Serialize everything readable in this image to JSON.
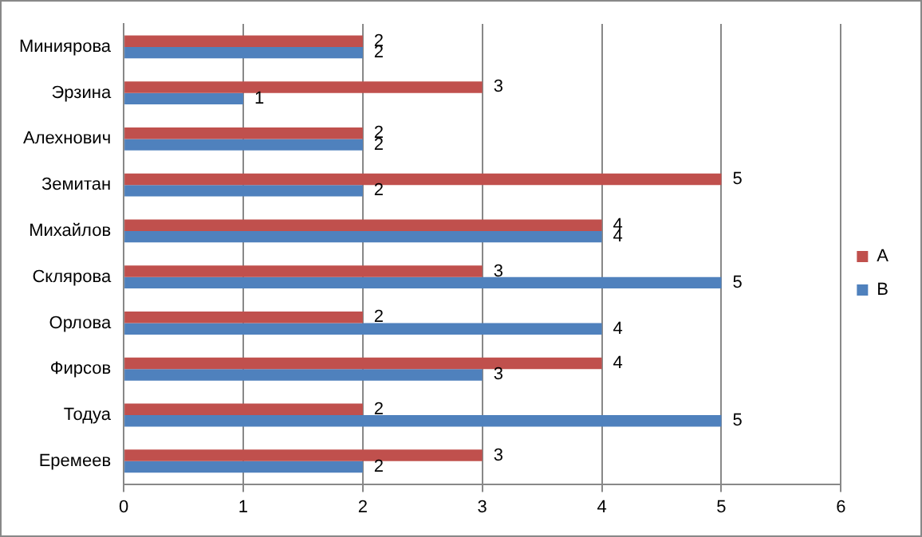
{
  "chart_data": {
    "type": "bar",
    "orientation": "horizontal",
    "categories": [
      "Миниярова",
      "Эрзина",
      "Алехнович",
      "Земитан",
      "Михайлов",
      "Склярова",
      "Орлова",
      "Фирсов",
      "Тодуа",
      "Еремеев"
    ],
    "series": [
      {
        "name": "A",
        "color": "#c0504d",
        "values": [
          2,
          3,
          2,
          5,
          4,
          3,
          2,
          4,
          2,
          3
        ]
      },
      {
        "name": "B",
        "color": "#4f81bd",
        "values": [
          2,
          1,
          2,
          2,
          4,
          5,
          4,
          3,
          5,
          2
        ]
      }
    ],
    "xlim": [
      0,
      6
    ],
    "xticks": [
      0,
      1,
      2,
      3,
      4,
      5,
      6
    ],
    "grid": "x",
    "legend": "right",
    "data_labels": true
  }
}
